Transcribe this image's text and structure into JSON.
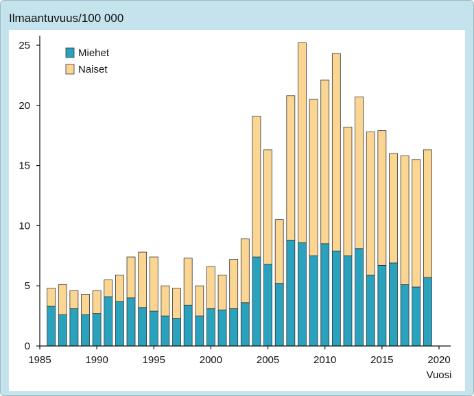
{
  "chart_data": {
    "type": "bar",
    "stacked": true,
    "ylabel": "Ilmaantuvuus/100 000",
    "xlabel": "Vuosi",
    "xlim": [
      1985,
      2020
    ],
    "ylim": [
      0,
      25
    ],
    "xticks": [
      1985,
      1990,
      1995,
      2000,
      2005,
      2010,
      2015,
      2020
    ],
    "yticks": [
      0,
      5,
      10,
      15,
      20,
      25
    ],
    "legend_position": "top-left",
    "categories": [
      1986,
      1987,
      1988,
      1989,
      1990,
      1991,
      1992,
      1993,
      1994,
      1995,
      1996,
      1997,
      1998,
      1999,
      2000,
      2001,
      2002,
      2003,
      2004,
      2005,
      2006,
      2007,
      2008,
      2009,
      2010,
      2011,
      2012,
      2013,
      2014,
      2015,
      2016,
      2017,
      2018,
      2019
    ],
    "series": [
      {
        "name": "Miehet",
        "color": "#2aa2bd",
        "values": [
          3.3,
          2.6,
          3.1,
          2.6,
          2.7,
          4.1,
          3.7,
          4.0,
          3.2,
          2.9,
          2.5,
          2.3,
          3.4,
          2.5,
          3.1,
          3.0,
          3.1,
          3.6,
          7.4,
          6.8,
          5.2,
          8.8,
          8.6,
          7.5,
          8.5,
          7.9,
          7.5,
          8.1,
          5.9,
          6.7,
          6.9,
          5.1,
          4.9,
          5.7
        ]
      },
      {
        "name": "Naiset",
        "color": "#fbd693",
        "values": [
          1.5,
          2.5,
          1.5,
          1.7,
          1.9,
          1.4,
          2.2,
          3.4,
          4.6,
          4.5,
          2.5,
          2.5,
          3.9,
          2.5,
          3.5,
          2.9,
          4.1,
          5.3,
          11.7,
          9.5,
          5.3,
          12.0,
          16.6,
          13.0,
          13.6,
          16.4,
          10.7,
          12.6,
          11.9,
          11.2,
          9.1,
          10.7,
          10.6,
          10.6
        ]
      }
    ]
  }
}
